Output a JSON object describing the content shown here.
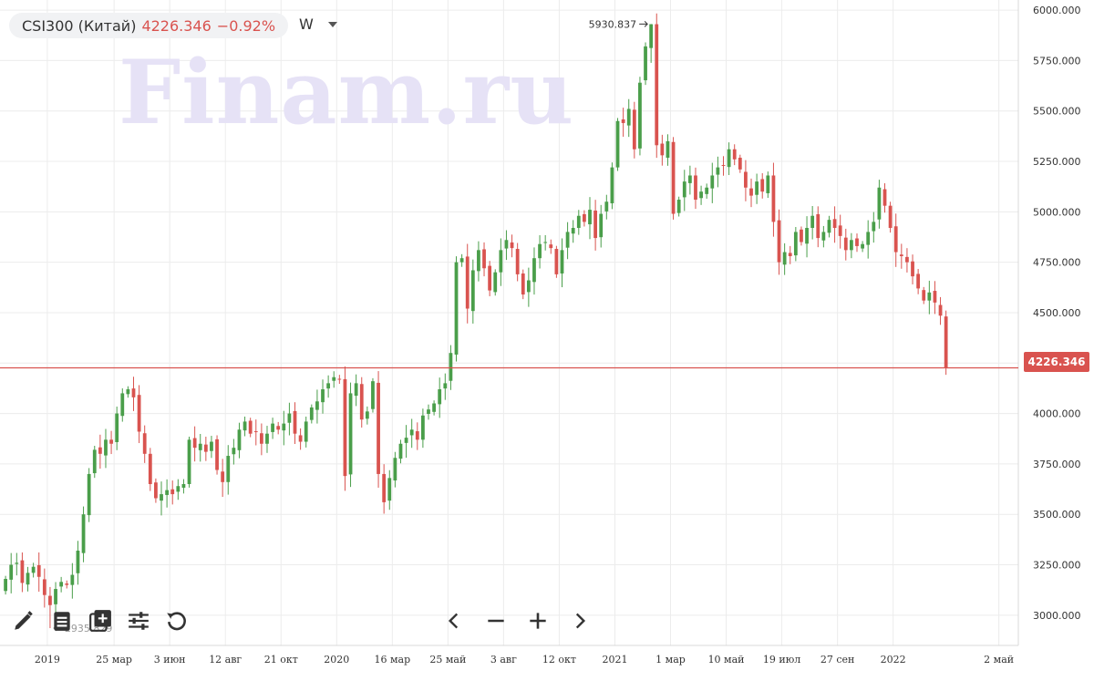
{
  "header": {
    "symbol": "CSI300 (Китай)",
    "price": "4226.346",
    "change": "−0.92%",
    "interval": "W"
  },
  "watermark": "Finam.ru",
  "annotations": {
    "high_label": "5930.837",
    "low_label": "2935.829",
    "last_price_label": "4226.346"
  },
  "toolbar": {
    "left": [
      "pencil-icon",
      "notes-icon",
      "add-panel-icon",
      "settings-sliders-icon",
      "reset-icon"
    ],
    "nav": [
      "scroll-left-icon",
      "zoom-out-icon",
      "zoom-in-icon",
      "scroll-right-icon"
    ]
  },
  "colors": {
    "up": "#4a9e4a",
    "down": "#d9534f",
    "grid": "#ececec",
    "axis_text": "#333333",
    "last_line": "#d9534f"
  },
  "chart_data": {
    "type": "candlestick",
    "title": "",
    "ylim": [
      2850,
      6050
    ],
    "y_ticks": [
      3000,
      3250,
      3500,
      3750,
      4000,
      4250,
      4500,
      4750,
      5000,
      5250,
      5500,
      5750,
      6000
    ],
    "y_tick_labels": [
      "3000.000",
      "3250.000",
      "3500.000",
      "3750.000",
      "4000.000",
      "4250.000",
      "4500.000",
      "4750.000",
      "5000.000",
      "5250.000",
      "5500.000",
      "5750.000",
      "6000.000"
    ],
    "x_tick_labels": [
      "2019",
      "25 мар",
      "3 июн",
      "12 авг",
      "21 окт",
      "2020",
      "16 мар",
      "25 май",
      "3 авг",
      "12 окт",
      "2021",
      "1 мар",
      "10 май",
      "19 июл",
      "27 сен",
      "2022",
      "2 май"
    ],
    "x_tick_index": [
      7.5,
      19.5,
      29.5,
      39.5,
      49.5,
      59.5,
      69.5,
      79.5,
      89.5,
      99.5,
      109.5,
      119.5,
      129.5,
      139.5,
      149.5,
      159.5,
      178.5
    ],
    "x_range": [
      -1,
      182
    ],
    "last_price": 4226.346,
    "high": {
      "value": 5930.837,
      "index": 116
    },
    "low": {
      "value": 2935.829,
      "index": 8
    },
    "closes": [
      3180,
      3250,
      3260,
      3160,
      3210,
      3240,
      3190,
      3100,
      3050,
      3130,
      3165,
      3150,
      3200,
      3320,
      3500,
      3700,
      3820,
      3800,
      3870,
      3850,
      4000,
      4100,
      4120,
      4080,
      3910,
      3800,
      3650,
      3580,
      3600,
      3620,
      3600,
      3640,
      3650,
      3870,
      3830,
      3850,
      3810,
      3860,
      3720,
      3660,
      3790,
      3830,
      3920,
      3960,
      3900,
      3910,
      3850,
      3900,
      3950,
      3920,
      3950,
      4000,
      3900,
      3860,
      3960,
      4030,
      4060,
      4120,
      4150,
      4180,
      4170,
      3690,
      4100,
      4150,
      3970,
      4010,
      4160,
      3700,
      3560,
      3680,
      3780,
      3850,
      3880,
      3920,
      3870,
      3990,
      4020,
      4050,
      4120,
      4150,
      4300,
      4750,
      4770,
      4520,
      4710,
      4810,
      4720,
      4610,
      4700,
      4810,
      4860,
      4820,
      4690,
      4590,
      4660,
      4770,
      4840,
      4850,
      4820,
      4690,
      4810,
      4900,
      4920,
      4980,
      4950,
      5010,
      4870,
      4990,
      5050,
      5220,
      5450,
      5440,
      5510,
      5310,
      5640,
      5820,
      5930,
      5330,
      5280,
      5350,
      4990,
      5060,
      5150,
      5180,
      5060,
      5100,
      5120,
      5180,
      5220,
      5230,
      5310,
      5260,
      5210,
      5120,
      5080,
      5150,
      5100,
      5180,
      4950,
      4750,
      4800,
      4780,
      4900,
      4850,
      4920,
      4980,
      4870,
      4900,
      4960,
      4920,
      4880,
      4810,
      4860,
      4830,
      4840,
      4900,
      4950,
      5120,
      5030,
      4920,
      4800,
      4780,
      4750,
      4680,
      4620,
      4560,
      4600,
      4550,
      4485,
      4226
    ]
  }
}
